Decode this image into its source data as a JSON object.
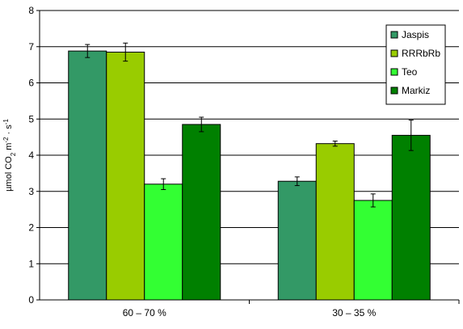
{
  "chart_data": {
    "type": "bar",
    "categories": [
      "60 – 70 %",
      "30 – 35 %"
    ],
    "ylim": [
      0,
      8
    ],
    "yticks": [
      "0",
      "1",
      "2",
      "3",
      "4",
      "5",
      "6",
      "7",
      "8"
    ],
    "ylabel": {
      "prefix": "µmol CO",
      "sub": "2",
      "mid": " m",
      "sup1": "-2",
      "sep": " · s",
      "sup2": "-1"
    },
    "grid": true,
    "legend_position": "top-right",
    "series": [
      {
        "name": "Jaspis",
        "color": "#339966",
        "values": [
          6.88,
          3.28
        ],
        "errors": [
          0.18,
          0.12
        ]
      },
      {
        "name": "RRRbRb",
        "color": "#99CC00",
        "values": [
          6.85,
          4.32
        ],
        "errors": [
          0.25,
          0.07
        ]
      },
      {
        "name": "Teo",
        "color": "#33FF33",
        "values": [
          3.2,
          2.75
        ],
        "errors": [
          0.15,
          0.18
        ]
      },
      {
        "name": "Markiz",
        "color": "#008000",
        "values": [
          4.85,
          4.55
        ],
        "errors": [
          0.2,
          0.42
        ]
      }
    ]
  }
}
